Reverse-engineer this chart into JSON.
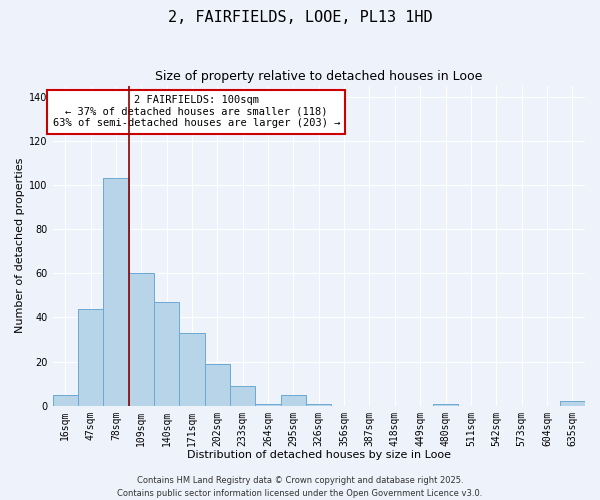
{
  "title": "2, FAIRFIELDS, LOOE, PL13 1HD",
  "subtitle": "Size of property relative to detached houses in Looe",
  "xlabel": "Distribution of detached houses by size in Looe",
  "ylabel": "Number of detached properties",
  "categories": [
    "16sqm",
    "47sqm",
    "78sqm",
    "109sqm",
    "140sqm",
    "171sqm",
    "202sqm",
    "233sqm",
    "264sqm",
    "295sqm",
    "326sqm",
    "356sqm",
    "387sqm",
    "418sqm",
    "449sqm",
    "480sqm",
    "511sqm",
    "542sqm",
    "573sqm",
    "604sqm",
    "635sqm"
  ],
  "values": [
    5,
    44,
    103,
    60,
    47,
    33,
    19,
    9,
    1,
    5,
    1,
    0,
    0,
    0,
    0,
    1,
    0,
    0,
    0,
    0,
    2
  ],
  "bar_color": "#b8d4e8",
  "bar_edge_color": "#6aaad4",
  "background_color": "#eef2fa",
  "grid_color": "#ffffff",
  "vline_color": "#8b0000",
  "annotation_text": "2 FAIRFIELDS: 100sqm\n← 37% of detached houses are smaller (118)\n63% of semi-detached houses are larger (203) →",
  "annotation_box_color": "#ffffff",
  "annotation_box_edge_color": "#cc0000",
  "ylim": [
    0,
    145
  ],
  "footer_line1": "Contains HM Land Registry data © Crown copyright and database right 2025.",
  "footer_line2": "Contains public sector information licensed under the Open Government Licence v3.0.",
  "title_fontsize": 11,
  "subtitle_fontsize": 9,
  "axis_label_fontsize": 8,
  "tick_fontsize": 7,
  "annotation_fontsize": 7.5,
  "footer_fontsize": 6
}
